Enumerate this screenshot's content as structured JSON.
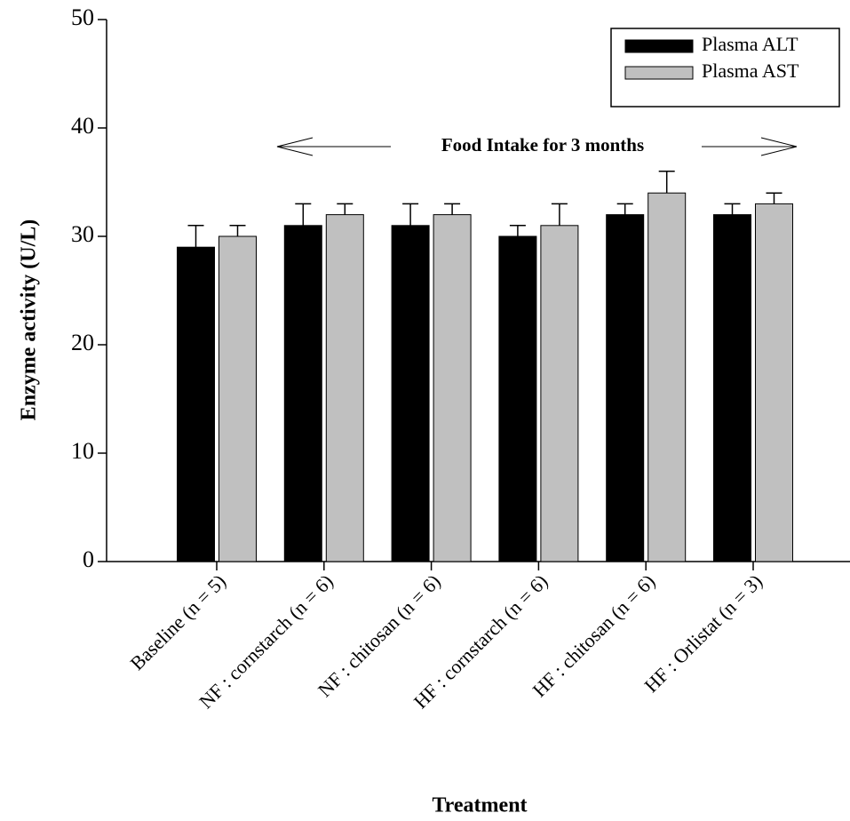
{
  "chart_data": {
    "type": "bar",
    "ylabel": "Enzyme activity (U/L)",
    "xlabel": "Treatment",
    "annotation": "Food Intake for 3 months",
    "categories": [
      "Baseline (n = 5)",
      "NF : cornstarch (n = 6)",
      "NF : chitosan (n = 6)",
      "HF : cornstarch (n = 6)",
      "HF : chitosan (n = 6)",
      "HF : Orlistat (n = 3)"
    ],
    "series": [
      {
        "name": "Plasma ALT",
        "color": "#000000",
        "values": [
          29,
          31,
          31,
          30,
          32,
          32
        ],
        "errors": [
          2,
          2,
          2,
          1,
          1,
          1
        ]
      },
      {
        "name": "Plasma AST",
        "color": "#c0c0c0",
        "values": [
          30,
          32,
          32,
          31,
          34,
          33
        ],
        "errors": [
          1,
          1,
          1,
          2,
          2,
          1
        ]
      }
    ],
    "ylim": [
      0,
      50
    ],
    "yticks": [
      0,
      10,
      20,
      30,
      40,
      50
    ],
    "legend": "upper right"
  }
}
